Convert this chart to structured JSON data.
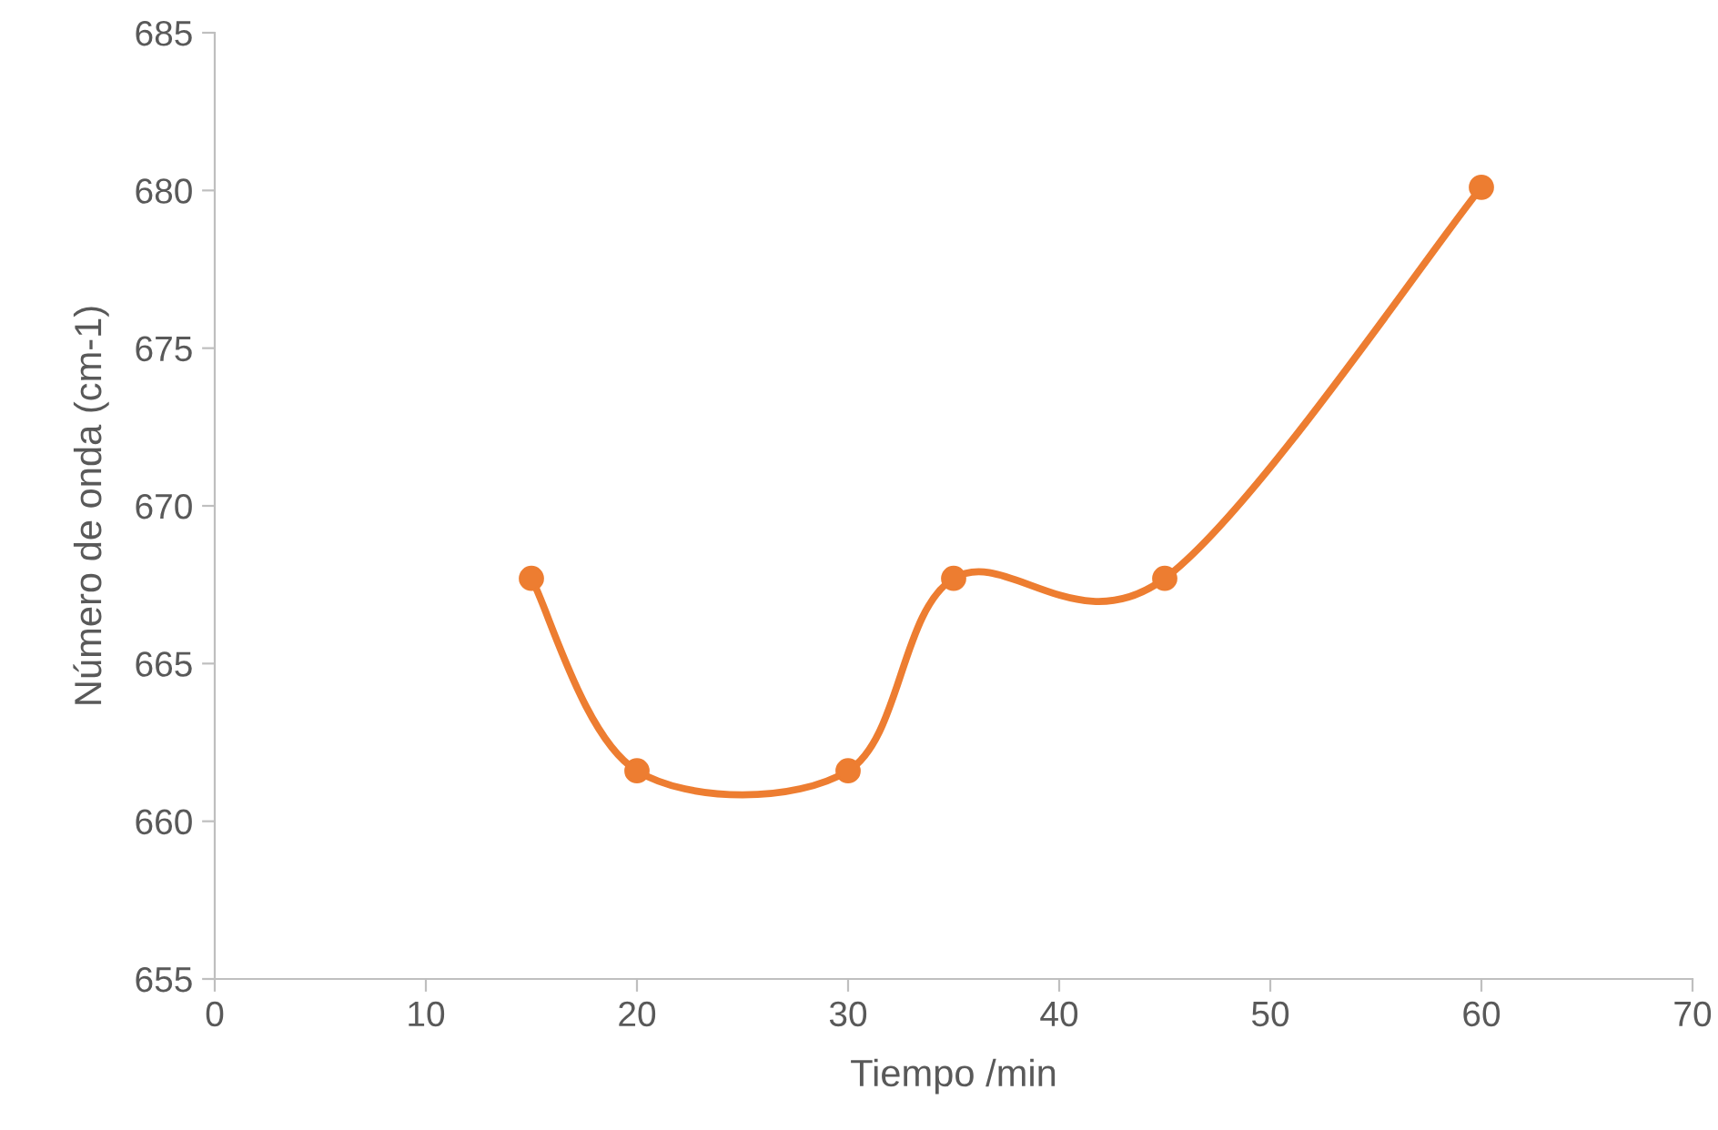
{
  "chart_data": {
    "type": "line",
    "xlabel": "Tiempo /min",
    "ylabel": "Número de onda (cm-1)",
    "x": [
      15,
      20,
      30,
      35,
      45,
      60
    ],
    "series": [
      {
        "color": "#ed7d31",
        "values": [
          667.7,
          661.6,
          661.6,
          667.7,
          667.7,
          680.1
        ]
      }
    ],
    "xlim": [
      0,
      70
    ],
    "xticks": [
      0,
      10,
      20,
      30,
      40,
      50,
      60,
      70
    ],
    "ylim": [
      655,
      685
    ],
    "yticks": [
      655,
      660,
      665,
      670,
      675,
      680,
      685
    ],
    "marker": "circle",
    "line_style": "solid",
    "grid": false,
    "legend": false
  }
}
